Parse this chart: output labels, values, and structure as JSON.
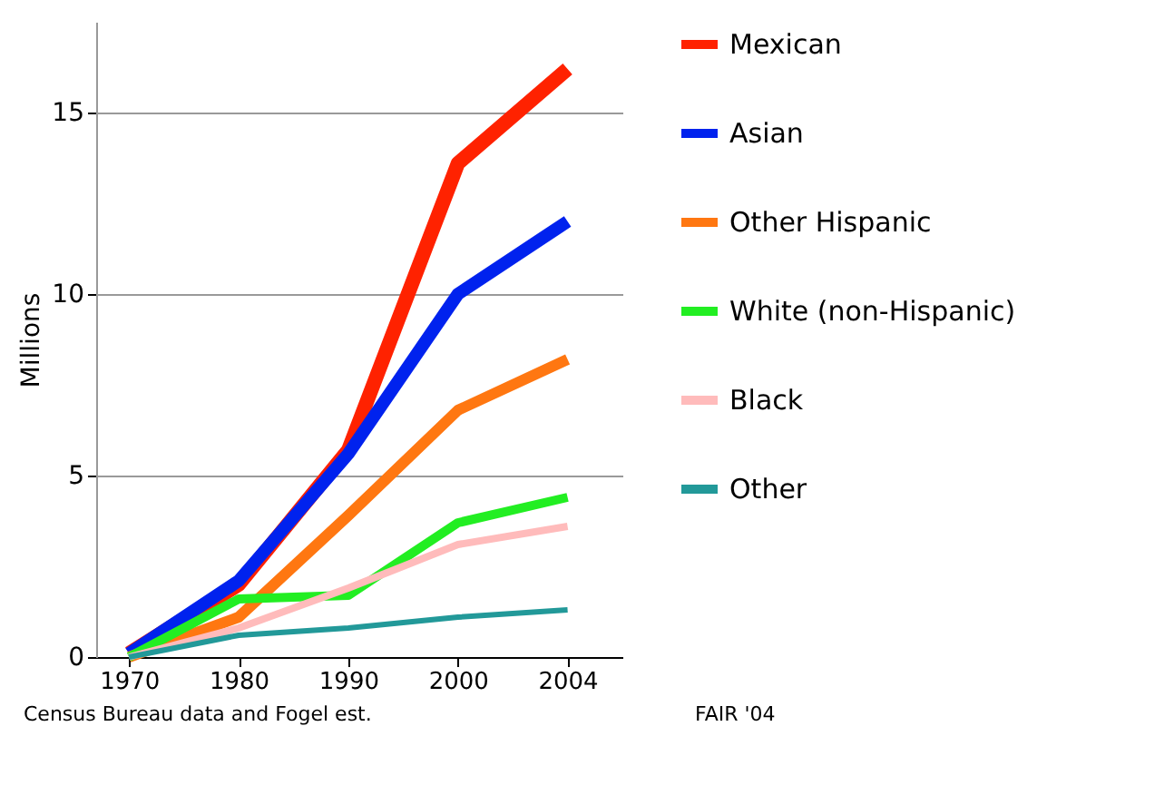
{
  "chart_data": {
    "type": "line",
    "ylabel": "Millions",
    "categories": [
      "1970",
      "1980",
      "1990",
      "2000",
      "2004"
    ],
    "series": [
      {
        "name": "Mexican",
        "color": "#ff2200",
        "values": [
          0.1,
          2.0,
          5.7,
          13.6,
          16.2
        ]
      },
      {
        "name": "Asian",
        "color": "#0022ee",
        "values": [
          0.1,
          2.1,
          5.6,
          10.0,
          12.0
        ]
      },
      {
        "name": "Other Hispanic",
        "color": "#ff7711",
        "values": [
          0.0,
          1.1,
          3.9,
          6.8,
          8.2
        ]
      },
      {
        "name": "White (non-Hispanic)",
        "color": "#22ee22",
        "values": [
          0.0,
          1.6,
          1.7,
          3.7,
          4.4
        ]
      },
      {
        "name": "Black",
        "color": "#ffbbbb",
        "values": [
          0.0,
          0.8,
          1.9,
          3.1,
          3.6
        ]
      },
      {
        "name": "Other",
        "color": "#229999",
        "values": [
          0.0,
          0.6,
          0.8,
          1.1,
          1.3
        ]
      }
    ],
    "ylim": [
      0,
      17.5
    ],
    "yticks": [
      0,
      5,
      10,
      15
    ],
    "grid": "y",
    "legend": "right",
    "marker": "none",
    "line_style": "solid",
    "annotations": [
      "Census Bureau data and Fogel est.",
      "FAIR '04"
    ]
  }
}
